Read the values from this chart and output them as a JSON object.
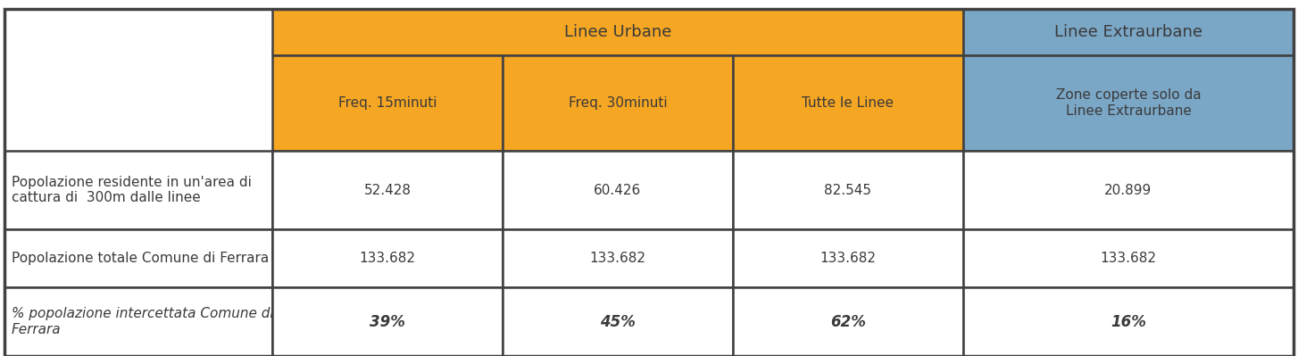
{
  "orange_color": "#F5A623",
  "blue_color": "#7BA7C7",
  "white_color": "#FFFFFF",
  "border_color": "#404040",
  "text_dark": "#3A3A3A",
  "header1_text": "Linee Urbane",
  "header2_text": "Linee Extraurbane",
  "subheader_col1": "Freq. 15minuti",
  "subheader_col2": "Freq. 30minuti",
  "subheader_col3": "Tutte le Linee",
  "subheader_col4": "Zone coperte solo da\nLinee Extraurbane",
  "row1_label": "Popolazione residente in un'area di\ncattura di  300m dalle linee",
  "row2_label": "Popolazione totale Comune di Ferrara",
  "row3_label": "% popolazione intercettata Comune di\nFerrara",
  "row1_col1": "52.428",
  "row1_col2": "60.426",
  "row1_col3": "82.545",
  "row1_col4": "20.899",
  "row2_col1": "133.682",
  "row2_col2": "133.682",
  "row2_col3": "133.682",
  "row2_col4": "133.682",
  "row3_col1": "39%",
  "row3_col2": "45%",
  "row3_col3": "62%",
  "row3_col4": "16%"
}
